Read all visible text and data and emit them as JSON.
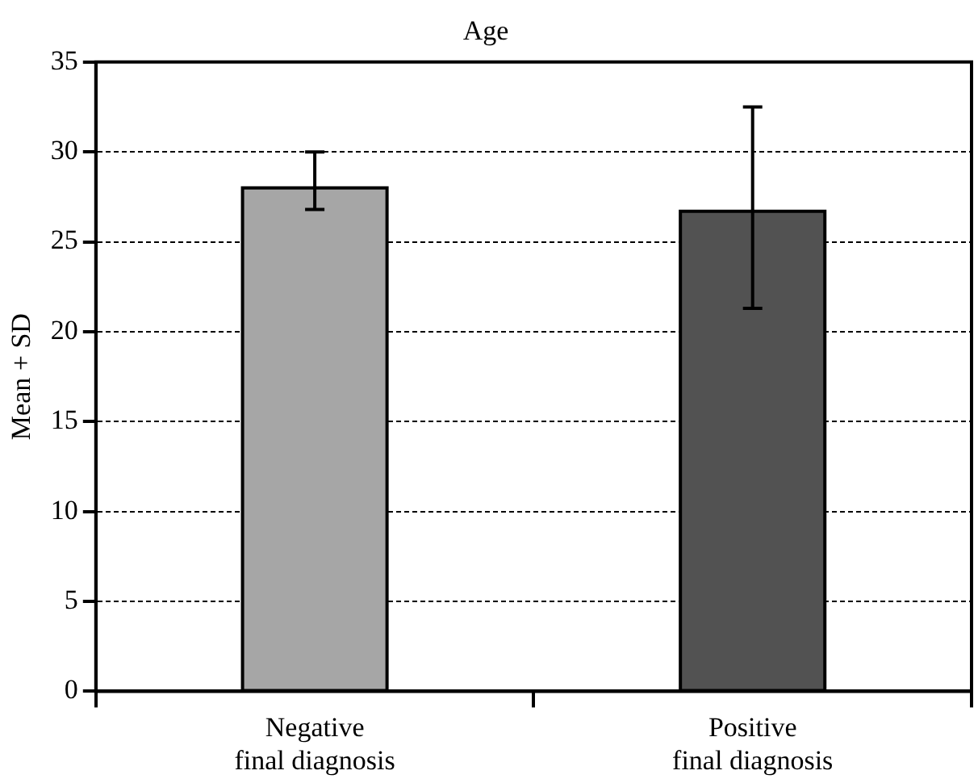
{
  "chart_data": {
    "type": "bar",
    "title": "Age",
    "ylabel": "Mean + SD",
    "categories": [
      "Negative\nfinal diagnosis",
      "Positive\nfinal diagnosis"
    ],
    "values": [
      28.0,
      26.7
    ],
    "colors": [
      "#a6a6a6",
      "#525252"
    ],
    "errors": [
      [
        26.8,
        30.0
      ],
      [
        21.3,
        32.5
      ]
    ],
    "ylim": [
      0,
      35
    ],
    "yticks": [
      0,
      5,
      10,
      15,
      20,
      25,
      30,
      35
    ],
    "grid": "y",
    "legend": false
  }
}
